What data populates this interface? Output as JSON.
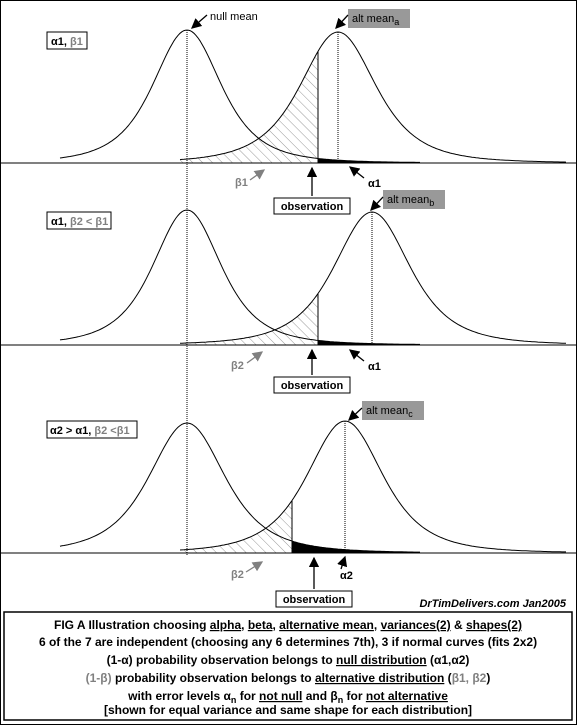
{
  "null_mean": "null mean",
  "panels": [
    {
      "label": "α1, ",
      "label_gray": "β1",
      "alt_mean": "alt mean",
      "alt_mean_sub": "a",
      "beta_label": "β1",
      "alpha_label": "α1",
      "observation": "observation"
    },
    {
      "label": "α1, ",
      "label_gray": "β2 < β1",
      "alt_mean": "alt mean",
      "alt_mean_sub": "b",
      "beta_label": "β2",
      "alpha_label": "α1",
      "observation": "observation"
    },
    {
      "label": "α2 > α1, ",
      "label_gray": "β2 <β1",
      "alt_mean": "alt mean",
      "alt_mean_sub": "c",
      "beta_label": "β2",
      "alpha_label": "α2",
      "observation": "observation"
    }
  ],
  "credit": "DrTimDelivers.com Jan2005",
  "caption": [
    [
      "FIG A Illustration choosing ",
      "alpha",
      ", ",
      "beta",
      ", ",
      "alternative mean",
      ", ",
      "variances(2)",
      " & ",
      "shapes(2)"
    ],
    [
      "6 of the 7 are independent (choosing any 6 determines 7th), 3 if normal curves (fits 2x2)"
    ],
    [
      "(1-α) probability observation belongs to ",
      "null distribution",
      " (α1,α2)"
    ],
    [
      "(1-β)",
      " probability observation belongs to ",
      "alternative distribution",
      " (",
      "β1, β2",
      ")"
    ],
    [
      "with error levels α",
      "n",
      " for ",
      "not null",
      " and β",
      "n",
      " for ",
      "not alternative"
    ],
    [
      "[shown for  equal variance and same shape for each distribution]"
    ]
  ]
}
